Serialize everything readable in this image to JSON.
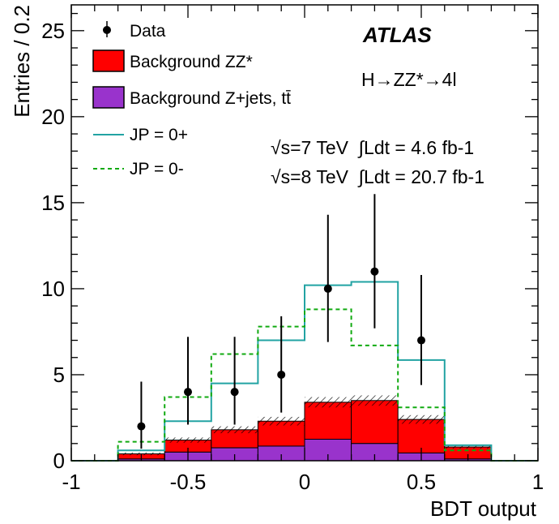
{
  "chart_data": {
    "type": "histogram",
    "title": "",
    "xlabel": "BDT output",
    "ylabel": "Entries / 0.2",
    "xlim": [
      -1,
      1
    ],
    "ylim": [
      0,
      26.5
    ],
    "bin_edges": [
      -1.0,
      -0.8,
      -0.6,
      -0.4,
      -0.2,
      0.0,
      0.2,
      0.4,
      0.6,
      0.8,
      1.0
    ],
    "x_ticks": [
      -1,
      -0.5,
      0,
      0.5,
      1
    ],
    "x_tick_labels": [
      "-1",
      "-0.5",
      "0",
      "0.5",
      "1"
    ],
    "y_ticks": [
      0,
      5,
      10,
      15,
      20,
      25
    ],
    "y_tick_labels": [
      "0",
      "5",
      "10",
      "15",
      "20",
      "25"
    ],
    "series": [
      {
        "name": "Background Z+jets, tt̄",
        "kind": "stacked-fill",
        "color": "#9933cc",
        "values": [
          0.0,
          0.1,
          0.5,
          0.75,
          0.85,
          1.25,
          1.0,
          0.45,
          0.1,
          0.0
        ]
      },
      {
        "name": "Background ZZ*",
        "kind": "stacked-fill",
        "color": "#ff0000",
        "values": [
          0.0,
          0.3,
          0.7,
          1.05,
          1.45,
          2.15,
          2.5,
          1.95,
          0.7,
          0.0
        ],
        "uncertainty": [
          0.0,
          0.08,
          0.15,
          0.2,
          0.25,
          0.3,
          0.3,
          0.25,
          0.1,
          0.0
        ]
      },
      {
        "name": "JP = 0+",
        "kind": "step",
        "color": "#22a3a3",
        "dash": "solid",
        "values": [
          0.0,
          0.6,
          2.3,
          4.5,
          7.0,
          10.2,
          10.4,
          5.85,
          0.9,
          0.0
        ]
      },
      {
        "name": "JP = 0-",
        "kind": "step",
        "color": "#11aa11",
        "dash": "dashed",
        "values": [
          0.0,
          1.1,
          3.7,
          6.2,
          7.8,
          8.8,
          6.7,
          3.1,
          0.6,
          0.0
        ]
      }
    ],
    "data_points": {
      "name": "Data",
      "x": [
        -0.7,
        -0.5,
        -0.3,
        -0.1,
        0.1,
        0.3,
        0.5
      ],
      "y": [
        2,
        4,
        4,
        5,
        10,
        11,
        7
      ],
      "err_low": [
        1.3,
        1.9,
        1.9,
        2.2,
        3.1,
        3.3,
        2.6
      ],
      "err_high": [
        2.6,
        3.2,
        3.2,
        3.4,
        4.3,
        4.5,
        3.8
      ]
    },
    "legend": {
      "placement": "top-left",
      "entries": [
        {
          "label": "Data",
          "key": "data"
        },
        {
          "label": "Background ZZ*",
          "key": "zz"
        },
        {
          "label": "Background Z+jets, tt̄",
          "key": "zjets"
        },
        {
          "label": "JP = 0+",
          "key": "sm"
        },
        {
          "label": "JP = 0-",
          "key": "ps"
        }
      ]
    },
    "annotations": {
      "experiment": "ATLAS",
      "process": "H→ZZ*→4l",
      "lumi_7": "√s=7 TeV  ∫Ldt = 4.6 fb-1",
      "lumi_8": "√s=8 TeV  ∫Ldt = 20.7 fb-1"
    }
  }
}
